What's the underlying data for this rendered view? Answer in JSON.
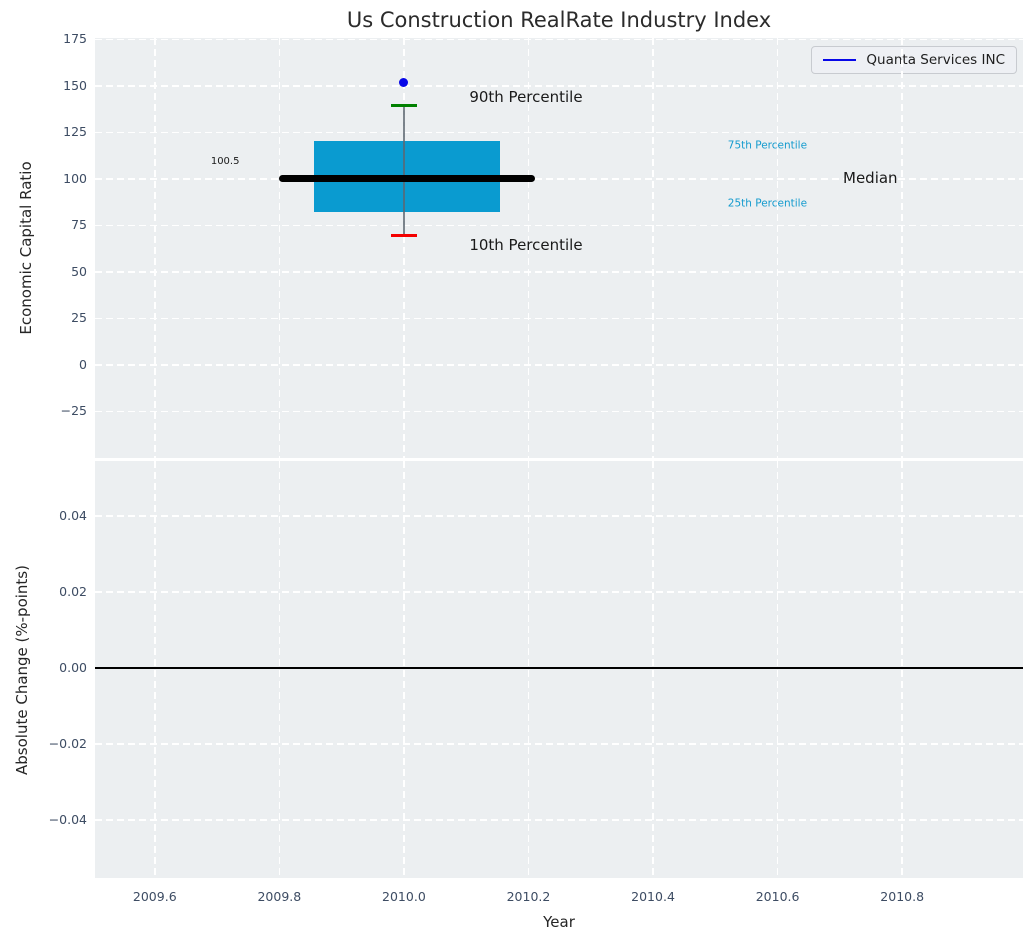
{
  "title": "Us Construction RealRate Industry Index",
  "colors": {
    "figure_bg": "#ffffff",
    "plot_bg": "#eceff1",
    "grid": "#ffffff",
    "tick_label": "#3d4c63",
    "text": "#262626",
    "box_fill": "#0a9bd0",
    "median_line": "#000000",
    "whisker": "#5c6670",
    "p90_cap": "#008000",
    "p10_cap": "#f40000",
    "company_dot": "#0707e8",
    "percentile_label": "#149bce",
    "zero_line": "#000000"
  },
  "chart_data": [
    {
      "type": "boxplot",
      "subplot": "economic-capital-ratio",
      "title": "Us Construction RealRate Industry Index",
      "ylabel": "Economic Capital Ratio",
      "xlabel": "",
      "grid": true,
      "xlim": [
        2009.504,
        2010.994
      ],
      "ylim": [
        -50,
        175.8
      ],
      "xticks": [
        {
          "v": 2009.6,
          "label": "2009.6"
        },
        {
          "v": 2009.8,
          "label": "2009.8"
        },
        {
          "v": 2010.0,
          "label": "2010.0"
        },
        {
          "v": 2010.2,
          "label": "2010.2"
        },
        {
          "v": 2010.4,
          "label": "2010.4"
        },
        {
          "v": 2010.6,
          "label": "2010.6"
        },
        {
          "v": 2010.8,
          "label": "2010.8"
        }
      ],
      "yticks": [
        {
          "v": 175,
          "label": "175"
        },
        {
          "v": 150,
          "label": "150"
        },
        {
          "v": 125,
          "label": "125"
        },
        {
          "v": 100,
          "label": "100"
        },
        {
          "v": 75,
          "label": "75"
        },
        {
          "v": 50,
          "label": "50"
        },
        {
          "v": 25,
          "label": "25"
        },
        {
          "v": 0,
          "label": "0"
        },
        {
          "v": -25,
          "label": "−25"
        }
      ],
      "legend": {
        "position": "upper right",
        "entries": [
          {
            "label": "Quanta Services INC",
            "color": "#0707e8"
          }
        ]
      },
      "boxes": [
        {
          "x": 2010.0,
          "box_left": 2009.855,
          "box_right": 2010.155,
          "p10": 69.5,
          "p25": 82.5,
          "median": 100.5,
          "p75": 120.5,
          "p90": 139.5,
          "cap_halfwidth": 0.021,
          "median_line": {
            "x1": 2009.8,
            "x2": 2010.21
          },
          "company_point": {
            "name": "Quanta Services INC",
            "x": 2010.0,
            "y": 152
          }
        }
      ],
      "annotations": [
        {
          "text": "90th Percentile",
          "x": 2010.105,
          "y": 144.0,
          "color": "#1a1a1a",
          "size": 15,
          "anchor": "left"
        },
        {
          "text": "10th Percentile",
          "x": 2010.105,
          "y": 64.5,
          "color": "#1a1a1a",
          "size": 15,
          "anchor": "left"
        },
        {
          "text": "100.5",
          "x": 2009.713,
          "y": 109.0,
          "color": "#1a1a1a",
          "size": 10,
          "anchor": "center"
        },
        {
          "text": "75th Percentile",
          "x": 2010.52,
          "y": 117.5,
          "color": "#149bce",
          "size": 10.5,
          "anchor": "left"
        },
        {
          "text": "25th Percentile",
          "x": 2010.52,
          "y": 86.5,
          "color": "#149bce",
          "size": 10.5,
          "anchor": "left"
        },
        {
          "text": "Median",
          "x": 2010.705,
          "y": 100.3,
          "color": "#1a1a1a",
          "size": 15,
          "anchor": "left"
        }
      ]
    },
    {
      "type": "line",
      "subplot": "absolute-change",
      "title": "",
      "ylabel": "Absolute Change (%-points)",
      "xlabel": "Year",
      "grid": true,
      "xlim": [
        2009.504,
        2010.994
      ],
      "ylim": [
        -0.0553,
        0.0545
      ],
      "xticks": [
        {
          "v": 2009.6,
          "label": "2009.6"
        },
        {
          "v": 2009.8,
          "label": "2009.8"
        },
        {
          "v": 2010.0,
          "label": "2010.0"
        },
        {
          "v": 2010.2,
          "label": "2010.2"
        },
        {
          "v": 2010.4,
          "label": "2010.4"
        },
        {
          "v": 2010.6,
          "label": "2010.6"
        },
        {
          "v": 2010.8,
          "label": "2010.8"
        }
      ],
      "yticks": [
        {
          "v": 0.04,
          "label": "0.04"
        },
        {
          "v": 0.02,
          "label": "0.02"
        },
        {
          "v": 0.0,
          "label": "0.00"
        },
        {
          "v": -0.02,
          "label": "−0.02"
        },
        {
          "v": -0.04,
          "label": "−0.04"
        }
      ],
      "zero_line_y": 0.0,
      "series": []
    }
  ]
}
